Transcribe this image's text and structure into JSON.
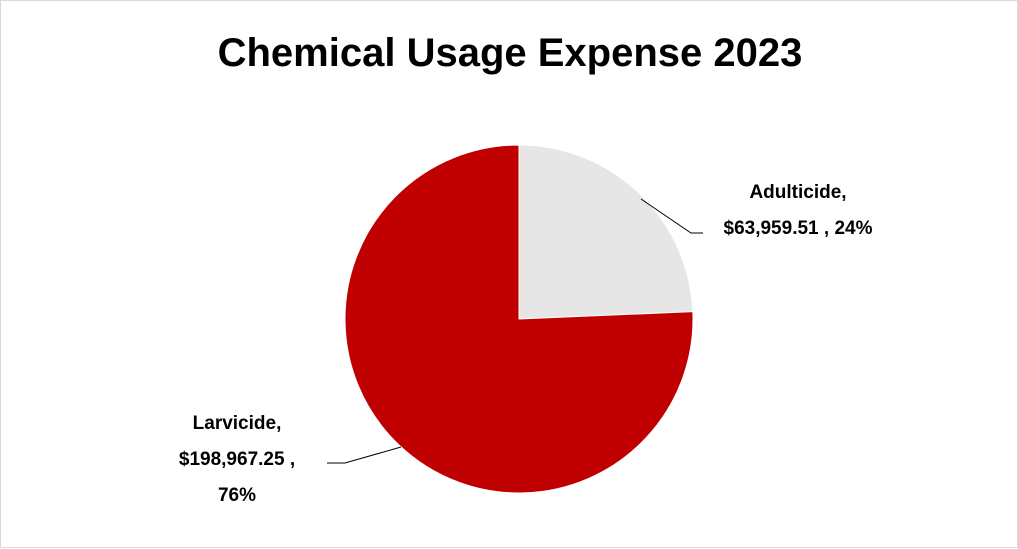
{
  "chart_data": {
    "type": "pie",
    "title": "Chemical Usage Expense 2023",
    "slices": [
      {
        "label": "Adulticide",
        "value": 63959.51,
        "value_text": "$63,959.51",
        "percent": 24,
        "color": "#e6e6e6"
      },
      {
        "label": "Larvicide",
        "value": 198967.25,
        "value_text": "$198,967.25",
        "percent": 76,
        "color": "#c00000"
      }
    ],
    "data_labels": {
      "adulticide": {
        "line1": "Adulticide,",
        "line2": "$63,959.51 , 24%"
      },
      "larvicide": {
        "line1": "Larvicide,",
        "line2": "$198,967.25 ,",
        "line3": "76%"
      }
    },
    "legend": "none"
  }
}
